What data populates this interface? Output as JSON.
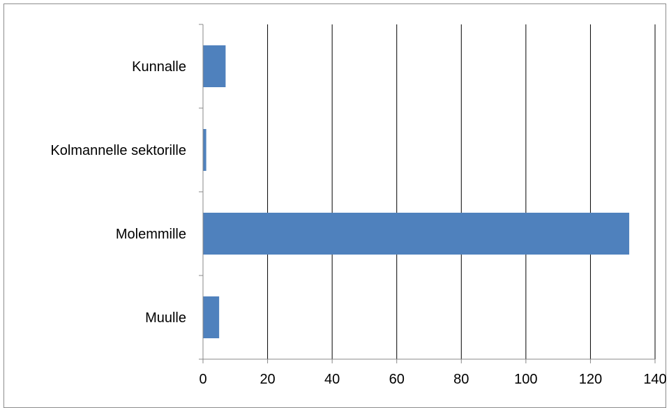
{
  "chart_data": {
    "type": "bar",
    "orientation": "horizontal",
    "title": "",
    "xlabel": "",
    "ylabel": "",
    "categories": [
      "Kunnalle",
      "Kolmannelle sektorille",
      "Molemmille",
      "Muulle"
    ],
    "values": [
      7,
      1,
      132,
      5
    ],
    "xlim": [
      0,
      140
    ],
    "x_ticks": [
      0,
      20,
      40,
      60,
      80,
      100,
      120,
      140
    ],
    "grid": "vertical-major",
    "legend": "none",
    "bar_color": "#4f81bd",
    "grid_color": "#000000"
  }
}
